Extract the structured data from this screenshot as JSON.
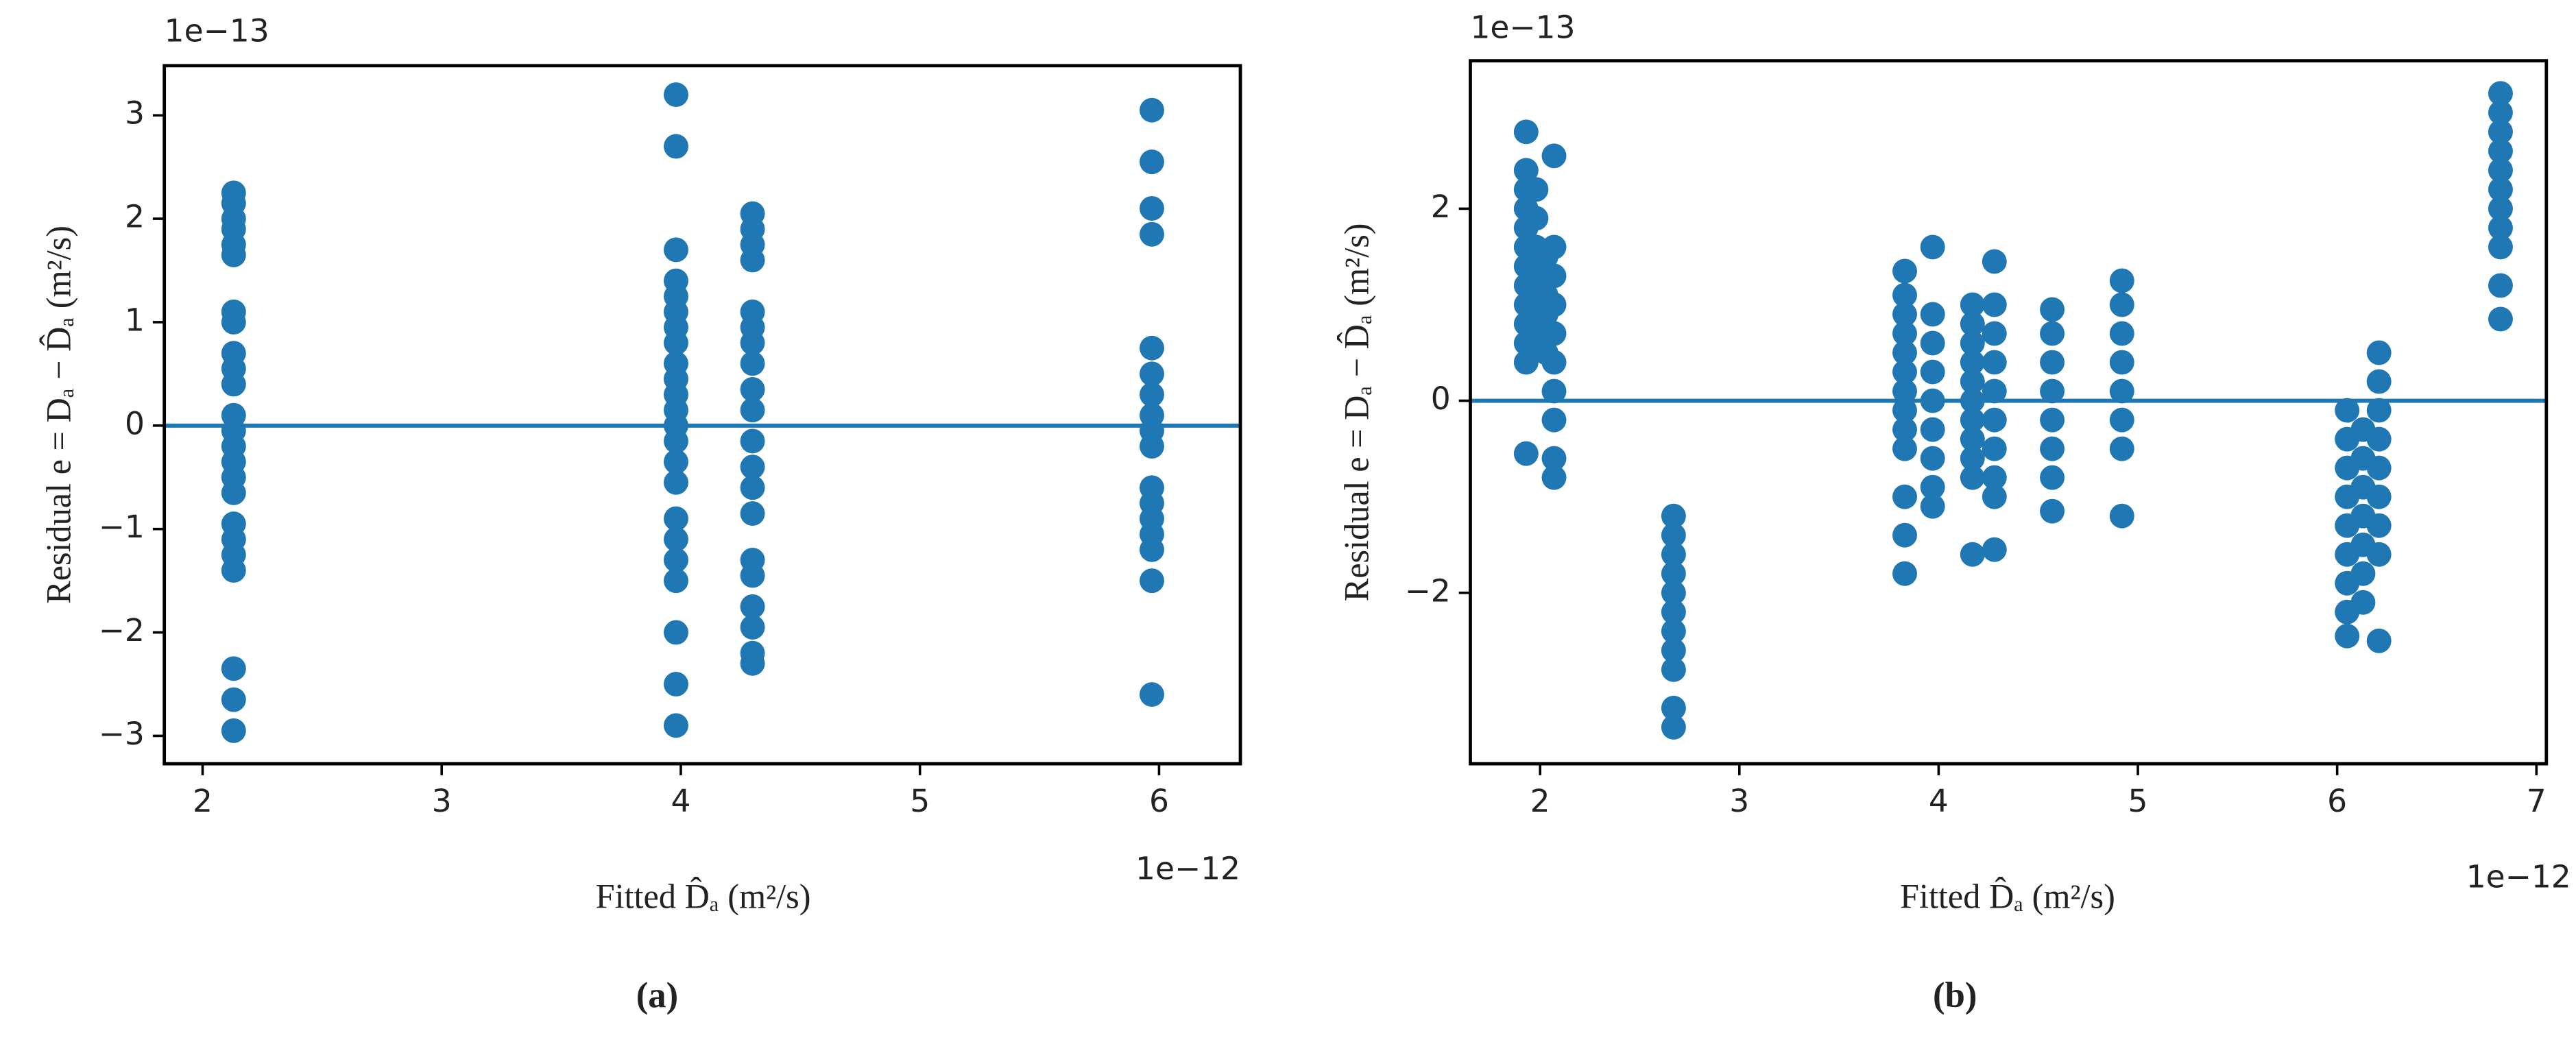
{
  "chart_data": [
    {
      "type": "scatter",
      "caption": "(a)",
      "xlabel": "Fitted D̂ₐ (m²/s)",
      "ylabel": "Residual e = Dₐ − D̂ₐ (m²/s)",
      "x_offset_text": "1e−12",
      "y_offset_text": "1e−13",
      "color": "#1f77b4",
      "hline": 0,
      "xlim": [
        1.84,
        6.34
      ],
      "ylim": [
        -3.27,
        3.48
      ],
      "xticks": [
        2,
        3,
        4,
        5,
        6
      ],
      "yticks": [
        {
          "value": -3,
          "label": "−3"
        },
        {
          "value": -2,
          "label": "−2"
        },
        {
          "value": -1,
          "label": "−1"
        },
        0,
        1,
        2,
        3
      ],
      "x": [
        2.13,
        2.13,
        2.13,
        2.13,
        2.13,
        2.13,
        2.13,
        2.13,
        2.13,
        2.13,
        2.13,
        2.13,
        2.13,
        2.13,
        2.13,
        2.13,
        2.13,
        2.13,
        2.13,
        2.13,
        2.13,
        2.13,
        2.13,
        2.13,
        3.98,
        3.98,
        3.98,
        3.98,
        3.98,
        3.98,
        3.98,
        3.98,
        3.98,
        3.98,
        3.98,
        3.98,
        3.98,
        3.98,
        3.98,
        3.98,
        3.98,
        3.98,
        3.98,
        3.98,
        3.98,
        3.98,
        3.98,
        4.3,
        4.3,
        4.3,
        4.3,
        4.3,
        4.3,
        4.3,
        4.3,
        4.3,
        4.3,
        4.3,
        4.3,
        4.3,
        4.3,
        4.3,
        4.3,
        4.3,
        4.3,
        4.3,
        4.3,
        5.97,
        5.97,
        5.97,
        5.97,
        5.97,
        5.97,
        5.97,
        5.97,
        5.97,
        5.97,
        5.97,
        5.97,
        5.97,
        5.97,
        5.97,
        5.97,
        5.97
      ],
      "values": [
        2.25,
        2.15,
        2.0,
        1.9,
        1.75,
        1.65,
        1.1,
        1.0,
        0.7,
        0.55,
        0.4,
        0.1,
        -0.05,
        -0.2,
        -0.35,
        -0.5,
        -0.65,
        -0.95,
        -1.1,
        -1.25,
        -1.4,
        -2.35,
        -2.65,
        -2.95,
        3.2,
        2.7,
        1.7,
        1.4,
        1.25,
        1.1,
        0.95,
        0.8,
        0.6,
        0.45,
        0.3,
        0.15,
        0,
        -0.15,
        -0.35,
        -0.55,
        -0.9,
        -1.1,
        -1.3,
        -1.5,
        -2.0,
        -2.5,
        -2.9,
        2.05,
        1.9,
        1.75,
        1.6,
        1.1,
        0.95,
        0.8,
        0.6,
        0.35,
        0.15,
        -0.15,
        -0.4,
        -0.6,
        -0.85,
        -1.3,
        -1.45,
        -1.75,
        -1.95,
        -2.2,
        -2.3,
        3.05,
        2.55,
        2.1,
        1.85,
        0.75,
        0.5,
        0.3,
        0.1,
        -0.05,
        -0.2,
        -0.6,
        -0.75,
        -0.9,
        -1.05,
        -1.2,
        -1.5,
        -2.6
      ]
    },
    {
      "type": "scatter",
      "caption": "(b)",
      "xlabel": "Fitted D̂ₐ (m²/s)",
      "ylabel": "Residual e = Dₐ − D̂ₐ (m²/s)",
      "x_offset_text": "1e−12",
      "y_offset_text": "1e−13",
      "color": "#1f77b4",
      "hline": 0,
      "xlim": [
        1.65,
        7.05
      ],
      "ylim": [
        -3.78,
        3.54
      ],
      "xticks": [
        2,
        3,
        4,
        5,
        6,
        7
      ],
      "yticks": [
        {
          "value": -2,
          "label": "−2"
        },
        0,
        2
      ],
      "x": [
        1.93,
        1.93,
        1.93,
        1.93,
        1.93,
        1.93,
        1.93,
        1.93,
        1.93,
        1.93,
        1.93,
        1.93,
        1.93,
        1.98,
        1.98,
        1.98,
        1.98,
        1.98,
        1.98,
        2.03,
        2.03,
        2.03,
        2.03,
        2.03,
        2.03,
        2.07,
        2.07,
        2.07,
        2.07,
        2.07,
        2.07,
        2.07,
        2.07,
        2.07,
        2.07,
        2.67,
        2.67,
        2.67,
        2.67,
        2.67,
        2.67,
        2.67,
        2.67,
        2.67,
        2.67,
        2.67,
        3.83,
        3.83,
        3.83,
        3.83,
        3.83,
        3.83,
        3.83,
        3.83,
        3.83,
        3.83,
        3.83,
        3.83,
        3.83,
        3.97,
        3.97,
        3.97,
        3.97,
        3.97,
        3.97,
        3.97,
        3.97,
        3.97,
        4.17,
        4.17,
        4.17,
        4.17,
        4.17,
        4.17,
        4.17,
        4.17,
        4.17,
        4.17,
        4.17,
        4.28,
        4.28,
        4.28,
        4.28,
        4.28,
        4.28,
        4.28,
        4.28,
        4.28,
        4.28,
        4.57,
        4.57,
        4.57,
        4.57,
        4.57,
        4.57,
        4.57,
        4.57,
        4.92,
        4.92,
        4.92,
        4.92,
        4.92,
        4.92,
        4.92,
        4.92,
        6.05,
        6.05,
        6.05,
        6.05,
        6.05,
        6.05,
        6.05,
        6.05,
        6.05,
        6.13,
        6.13,
        6.13,
        6.13,
        6.13,
        6.13,
        6.13,
        6.21,
        6.21,
        6.21,
        6.21,
        6.21,
        6.21,
        6.21,
        6.21,
        6.21,
        6.82,
        6.82,
        6.82,
        6.82,
        6.82,
        6.82,
        6.82,
        6.82,
        6.82,
        6.82,
        6.82
      ],
      "values": [
        2.8,
        2.4,
        2.2,
        2.0,
        1.8,
        1.6,
        1.4,
        1.2,
        1.0,
        0.8,
        0.6,
        0.4,
        -0.55,
        2.2,
        1.9,
        1.6,
        1.3,
        1.0,
        0.7,
        1.5,
        1.3,
        1.1,
        0.9,
        0.7,
        0.5,
        2.55,
        1.6,
        1.3,
        1.0,
        0.7,
        0.4,
        0.1,
        -0.2,
        -0.6,
        -0.8,
        -1.2,
        -1.4,
        -1.6,
        -1.8,
        -2.0,
        -2.2,
        -2.4,
        -2.6,
        -2.8,
        -3.2,
        -3.4,
        1.35,
        1.1,
        0.9,
        0.7,
        0.5,
        0.3,
        0.1,
        -0.1,
        -0.3,
        -0.5,
        -1.0,
        -1.4,
        -1.8,
        1.6,
        0.9,
        0.6,
        0.3,
        0,
        -0.3,
        -0.6,
        -0.9,
        -1.1,
        1.0,
        0.8,
        0.6,
        0.4,
        0.2,
        0,
        -0.2,
        -0.4,
        -0.6,
        -0.8,
        -1.6,
        1.45,
        1.0,
        0.7,
        0.4,
        0.1,
        -0.2,
        -0.5,
        -0.8,
        -1.0,
        -1.55,
        0.95,
        0.7,
        0.4,
        0.1,
        -0.2,
        -0.5,
        -0.8,
        -1.15,
        1.25,
        1.0,
        0.7,
        0.4,
        0.1,
        -0.2,
        -0.5,
        -1.2,
        -0.1,
        -0.4,
        -0.7,
        -1.0,
        -1.3,
        -1.6,
        -1.9,
        -2.2,
        -2.45,
        -0.3,
        -0.6,
        -0.9,
        -1.2,
        -1.5,
        -1.8,
        -2.1,
        0.5,
        0.2,
        -0.1,
        -0.4,
        -0.7,
        -1.0,
        -1.3,
        -1.6,
        -2.5,
        3.2,
        3.0,
        2.8,
        2.6,
        2.4,
        2.2,
        2.0,
        1.8,
        1.6,
        1.2,
        0.85
      ]
    }
  ]
}
